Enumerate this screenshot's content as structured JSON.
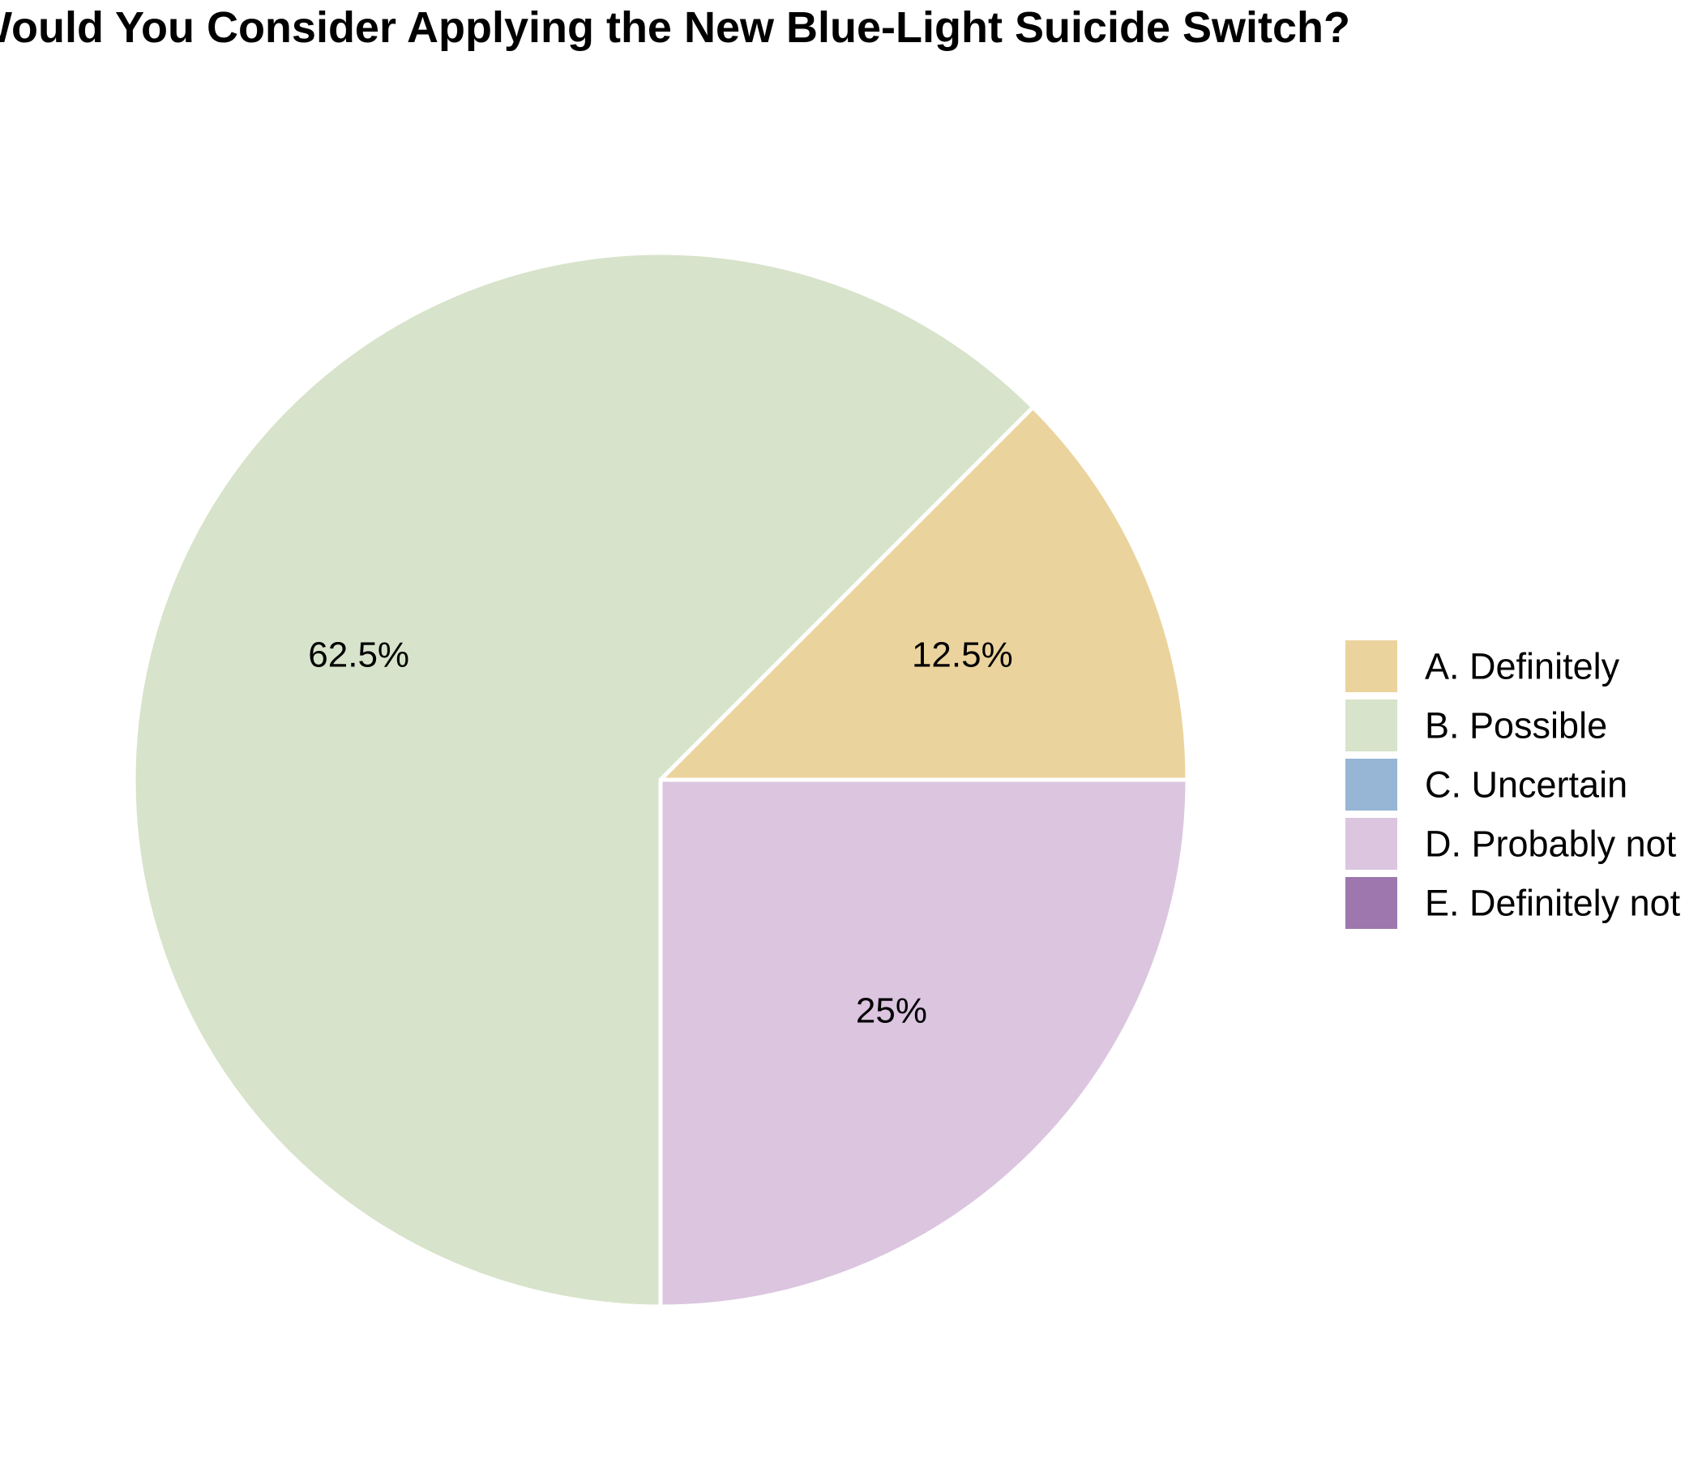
{
  "chart_data": {
    "type": "pie",
    "title": "Would You Consider Applying the New Blue-Light Suicide Switch?",
    "start_angle_deg": 0,
    "direction": "counterclockwise",
    "slices": [
      {
        "label": "A. Definitely",
        "value": 12.5,
        "display": "12.5%",
        "color": "#EBD39D"
      },
      {
        "label": "B. Possible",
        "value": 62.5,
        "display": "62.5%",
        "color": "#D7E3CA"
      },
      {
        "label": "C. Uncertain",
        "value": 0,
        "display": "",
        "color": "#97B5D4"
      },
      {
        "label": "D. Probably not",
        "value": 25,
        "display": "25%",
        "color": "#DBC5DF"
      },
      {
        "label": "E. Definitely not",
        "value": 0,
        "display": "",
        "color": "#9D77AE"
      }
    ],
    "legend": {
      "placement": "right"
    },
    "slice_border_color": "#FFFFFF"
  }
}
